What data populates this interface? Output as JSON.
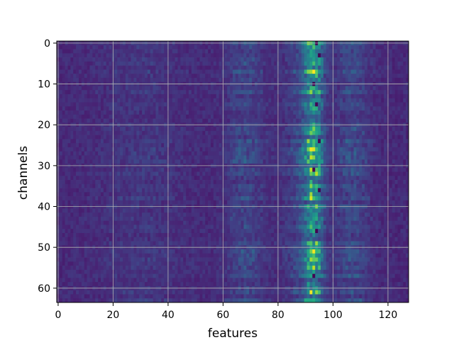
{
  "chart_data": {
    "type": "heatmap",
    "title": "",
    "xlabel": "features",
    "ylabel": "channels",
    "xlim": [
      -0.5,
      127.5
    ],
    "ylim": [
      63.5,
      -0.5
    ],
    "xticks": [
      0,
      20,
      40,
      60,
      80,
      100,
      120
    ],
    "yticks": [
      0,
      10,
      20,
      30,
      40,
      50,
      60
    ],
    "grid": true,
    "colormap": "viridis",
    "n_rows": 64,
    "n_cols": 128,
    "background_level": 0.12,
    "column_bands": [
      {
        "center": 93,
        "width": 3.5,
        "strength": 0.38
      },
      {
        "center": 88,
        "width": 6,
        "strength": 0.08
      },
      {
        "center": 107,
        "width": 6,
        "strength": 0.1
      },
      {
        "center": 68,
        "width": 7,
        "strength": 0.09
      },
      {
        "center": 30,
        "width": 15,
        "strength": 0.04
      }
    ],
    "hot_cells": [
      {
        "channel": 7,
        "feature": 92,
        "value": 0.85
      },
      {
        "channel": 8,
        "feature": 94,
        "value": 0.7
      },
      {
        "channel": 12,
        "feature": 91,
        "value": 0.65
      },
      {
        "channel": 21,
        "feature": 93,
        "value": 0.8
      },
      {
        "channel": 22,
        "feature": 94,
        "value": 0.6
      },
      {
        "channel": 26,
        "feature": 92,
        "value": 0.98
      },
      {
        "channel": 26,
        "feature": 93,
        "value": 0.95
      },
      {
        "channel": 30,
        "feature": 95,
        "value": 0.6
      },
      {
        "channel": 34,
        "feature": 92,
        "value": 0.65
      },
      {
        "channel": 37,
        "feature": 92,
        "value": 0.85
      },
      {
        "channel": 38,
        "feature": 94,
        "value": 0.6
      },
      {
        "channel": 43,
        "feature": 93,
        "value": 0.55
      },
      {
        "channel": 49,
        "feature": 95,
        "value": 0.55
      },
      {
        "channel": 53,
        "feature": 92,
        "value": 0.85
      },
      {
        "channel": 55,
        "feature": 95,
        "value": 0.7
      },
      {
        "channel": 59,
        "feature": 91,
        "value": 0.55
      },
      {
        "channel": 61,
        "feature": 92,
        "value": 0.98
      },
      {
        "channel": 63,
        "feature": 91,
        "value": 0.6
      }
    ],
    "cold_cells": [
      {
        "channel": 0,
        "feature": 94
      },
      {
        "channel": 3,
        "feature": 95
      },
      {
        "channel": 10,
        "feature": 93
      },
      {
        "channel": 15,
        "feature": 94
      },
      {
        "channel": 24,
        "feature": 95
      },
      {
        "channel": 31,
        "feature": 93
      },
      {
        "channel": 36,
        "feature": 95
      },
      {
        "channel": 46,
        "feature": 94
      },
      {
        "channel": 57,
        "feature": 93
      }
    ]
  }
}
